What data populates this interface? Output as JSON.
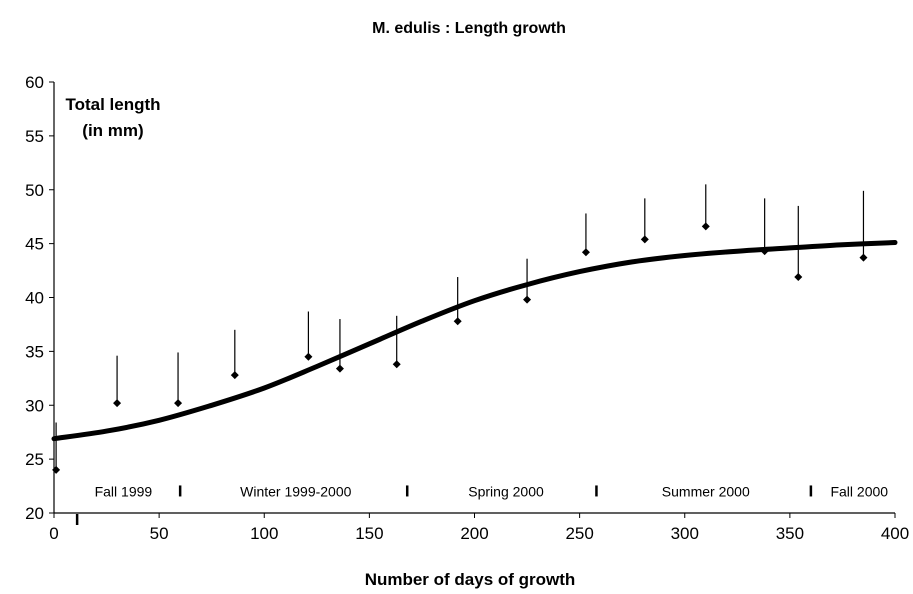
{
  "chart_data": {
    "type": "scatter",
    "title": "M. edulis : Length growth",
    "xlabel": "Number of days of growth",
    "ylabel_lines": [
      "Total length",
      "(in mm)"
    ],
    "xlim": [
      0,
      400
    ],
    "ylim": [
      20,
      60
    ],
    "x_ticks": [
      0,
      50,
      100,
      150,
      200,
      250,
      300,
      350,
      400
    ],
    "y_ticks": [
      20,
      25,
      30,
      35,
      40,
      45,
      50,
      55,
      60
    ],
    "grid": false,
    "series": [
      {
        "type": "scatter_with_error",
        "x": [
          1,
          30,
          59,
          86,
          121,
          136,
          163,
          192,
          225,
          253,
          281,
          310,
          338,
          354,
          385
        ],
        "y": [
          24.0,
          30.2,
          30.2,
          32.8,
          34.5,
          33.4,
          33.8,
          37.8,
          39.8,
          44.2,
          45.4,
          46.6,
          44.3,
          41.9,
          43.7
        ],
        "error_upper": [
          4.4,
          4.4,
          4.7,
          4.2,
          4.2,
          4.6,
          4.5,
          4.1,
          3.8,
          3.6,
          3.8,
          3.9,
          4.9,
          6.6,
          6.2
        ]
      },
      {
        "type": "fitted_curve",
        "x": [
          0,
          25,
          50,
          75,
          100,
          125,
          150,
          175,
          200,
          225,
          250,
          275,
          300,
          325,
          350,
          375,
          400
        ],
        "y": [
          26.9,
          27.6,
          28.6,
          30.0,
          31.6,
          33.6,
          35.7,
          37.8,
          39.7,
          41.2,
          42.4,
          43.3,
          43.9,
          44.3,
          44.6,
          44.9,
          45.1
        ]
      }
    ],
    "season_labels": [
      {
        "text": "Fall 1999",
        "x": 33
      },
      {
        "text": "Winter 1999-2000",
        "x": 115
      },
      {
        "text": "Spring 2000",
        "x": 215
      },
      {
        "text": "Summer 2000",
        "x": 310
      },
      {
        "text": "Fall 2000",
        "x": 383
      }
    ],
    "season_dividers": [
      60,
      168,
      258,
      360
    ],
    "season_y": 22,
    "extra_marker": {
      "x": 11,
      "y": 20
    }
  }
}
